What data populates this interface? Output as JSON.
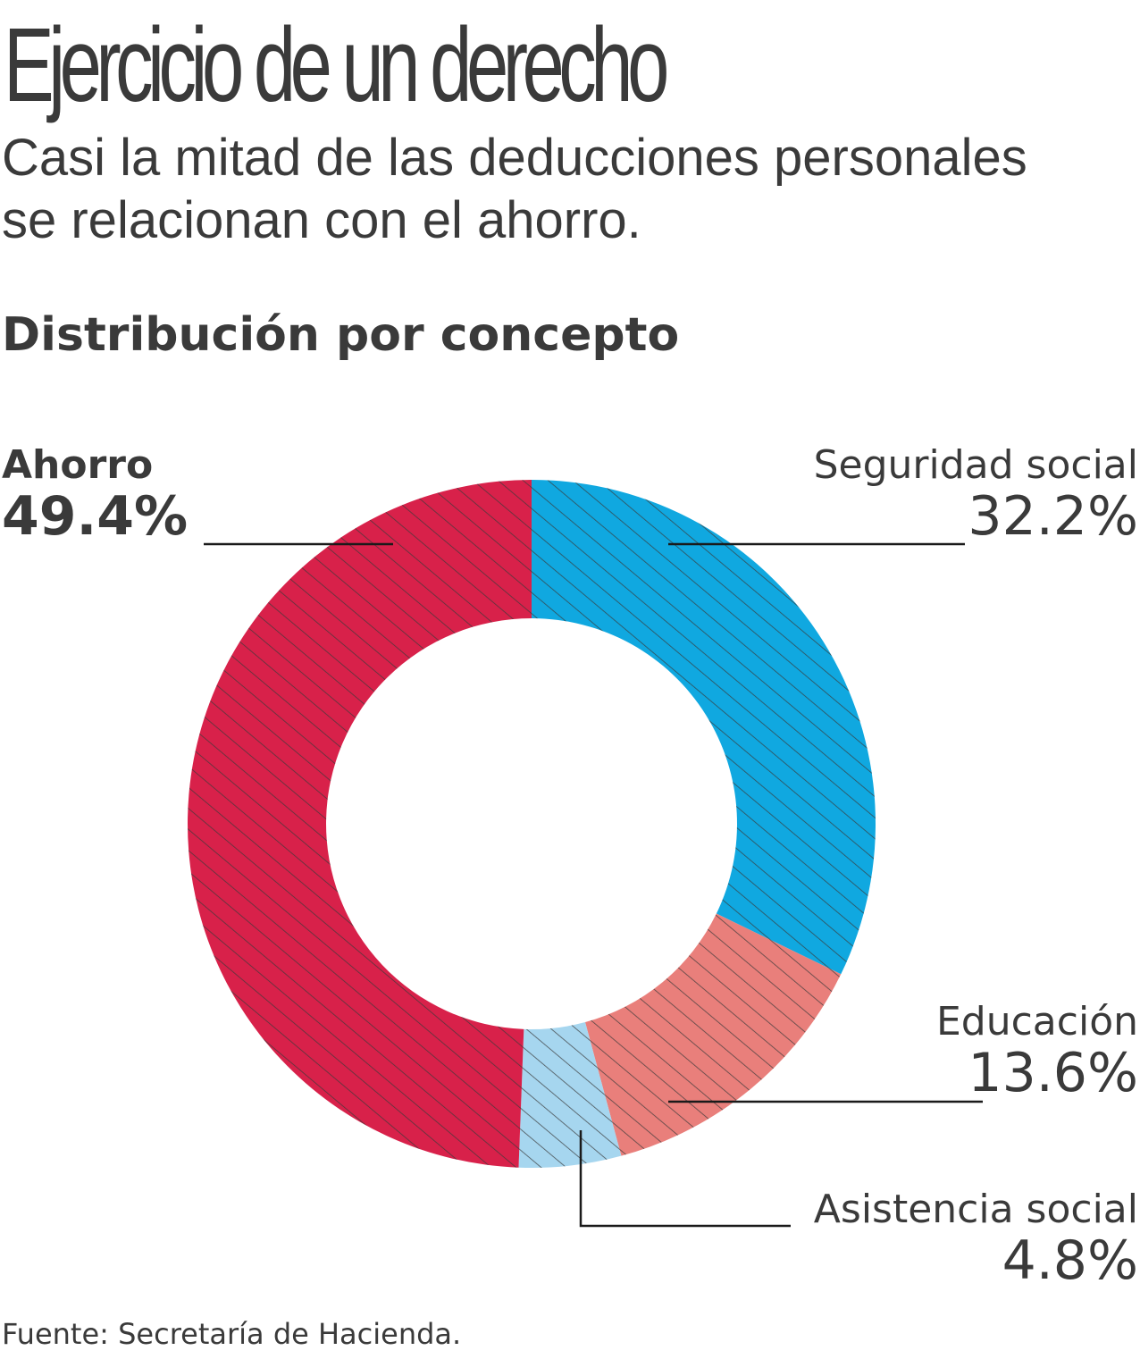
{
  "header": {
    "title": "Ejercicio de un derecho",
    "subtitle": "Casi la mitad de las deducciones personales se relacionan con el ahorro."
  },
  "section_title": "Distribución por concepto",
  "source": "Fuente: Secretaría de Hacienda.",
  "chart_data": {
    "type": "pie",
    "variant": "donut",
    "title": "Distribución por concepto",
    "categories": [
      "Seguridad social",
      "Educación",
      "Asistencia social",
      "Ahorro"
    ],
    "values": [
      32.2,
      13.6,
      4.8,
      49.4
    ],
    "unit": "%",
    "labels": [
      {
        "name": "Ahorro",
        "value": "49.4%"
      },
      {
        "name": "Seguridad social",
        "value": "32.2%"
      },
      {
        "name": "Educación",
        "value": "13.6%"
      },
      {
        "name": "Asistencia social",
        "value": "4.8%"
      }
    ],
    "colors": [
      "#10a8e0",
      "#e97f7b",
      "#a6d6ef",
      "#d8214a"
    ],
    "hatch_color": "#3a3a3a",
    "start_angle": "top, clockwise"
  }
}
